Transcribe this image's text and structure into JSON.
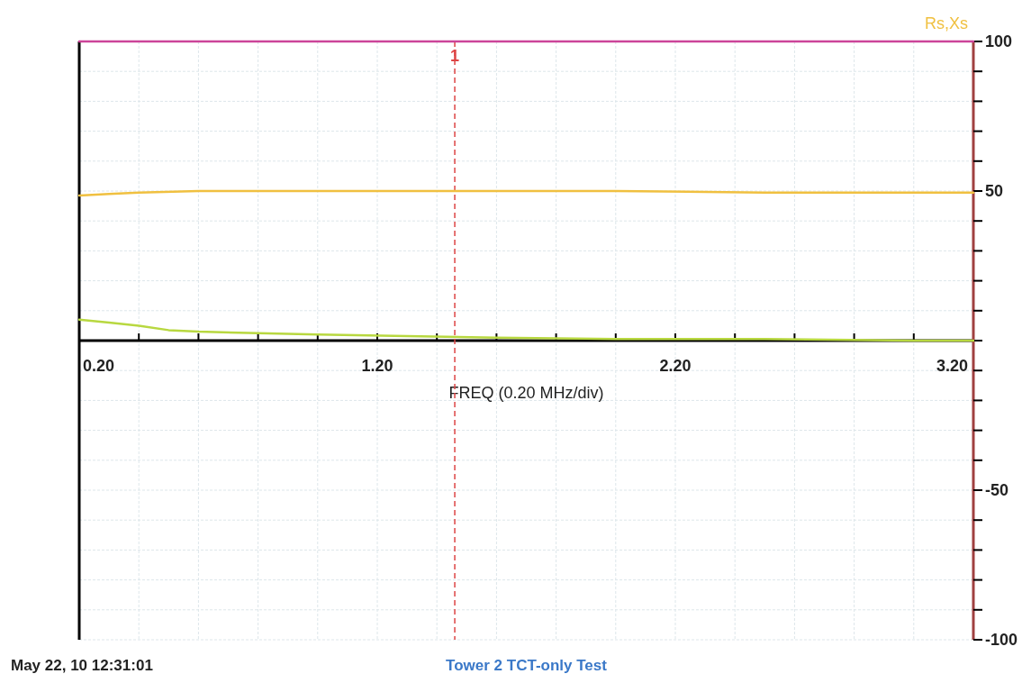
{
  "chart_data": {
    "type": "line",
    "xlabel": "FREQ (0.20 MHz/div)",
    "ylabel": "Rs,Xs",
    "xlim": [
      0.2,
      3.2
    ],
    "xticks": [
      "0.20",
      {
        "value": 0.4,
        "label": null
      },
      {
        "value": 0.6,
        "label": null
      },
      {
        "value": 0.8,
        "label": null
      },
      {
        "value": 1.0,
        "label": null
      },
      {
        "value": 1.2,
        "label": "1.20"
      },
      {
        "value": 1.4,
        "label": null
      },
      {
        "value": 1.6,
        "label": null
      },
      {
        "value": 1.8,
        "label": null
      },
      {
        "value": 2.0,
        "label": null
      },
      {
        "value": 2.2,
        "label": "2.20"
      },
      {
        "value": 2.4,
        "label": null
      },
      {
        "value": 2.6,
        "label": null
      },
      {
        "value": 2.8,
        "label": null
      },
      {
        "value": 3.0,
        "label": null
      },
      {
        "value": 3.2,
        "label": "3.20"
      }
    ],
    "ylim": [
      -100,
      100
    ],
    "yticks": [
      -100,
      {
        "value": -90,
        "label": null
      },
      {
        "value": -80,
        "label": null
      },
      {
        "value": -70,
        "label": null
      },
      {
        "value": -60,
        "label": null
      },
      -50,
      {
        "value": -40,
        "label": null
      },
      {
        "value": -30,
        "label": null
      },
      {
        "value": -20,
        "label": null
      },
      {
        "value": -10,
        "label": null
      },
      {
        "value": 0,
        "label": null
      },
      {
        "value": 10,
        "label": null
      },
      {
        "value": 20,
        "label": null
      },
      {
        "value": 30,
        "label": null
      },
      {
        "value": 40,
        "label": null
      },
      50,
      {
        "value": 60,
        "label": null
      },
      {
        "value": 70,
        "label": null
      },
      {
        "value": 80,
        "label": null
      },
      {
        "value": 90,
        "label": null
      },
      100
    ],
    "grid": true,
    "marker": "none",
    "line_style": "solid",
    "series": [
      {
        "color": "#cc4499",
        "x": [
          0.2,
          3.2
        ],
        "values": [
          100,
          100
        ]
      },
      {
        "color": "#f0c040",
        "x": [
          0.2,
          0.3,
          0.4,
          0.6,
          1.0,
          1.5,
          2.0,
          2.5,
          3.0,
          3.2
        ],
        "values": [
          48.5,
          49,
          49.5,
          50,
          50,
          50,
          50,
          49.5,
          49.5,
          49.5
        ]
      },
      {
        "color": "#b8d840",
        "x": [
          0.2,
          0.3,
          0.4,
          0.5,
          0.6,
          0.8,
          1.0,
          1.3,
          1.6,
          2.0,
          2.5,
          3.0,
          3.2
        ],
        "values": [
          7,
          6,
          5,
          3.5,
          3,
          2.5,
          2,
          1.5,
          1,
          0.5,
          0.5,
          0,
          0
        ]
      }
    ],
    "ref_lines": [
      {
        "axis": "x",
        "value": 1.46,
        "label": "1",
        "color": "#dd4444",
        "line_style": "dashed"
      }
    ],
    "annotations": [
      "May 22, 10  12:31:01",
      "Tower 2 TCT-only Test"
    ]
  }
}
